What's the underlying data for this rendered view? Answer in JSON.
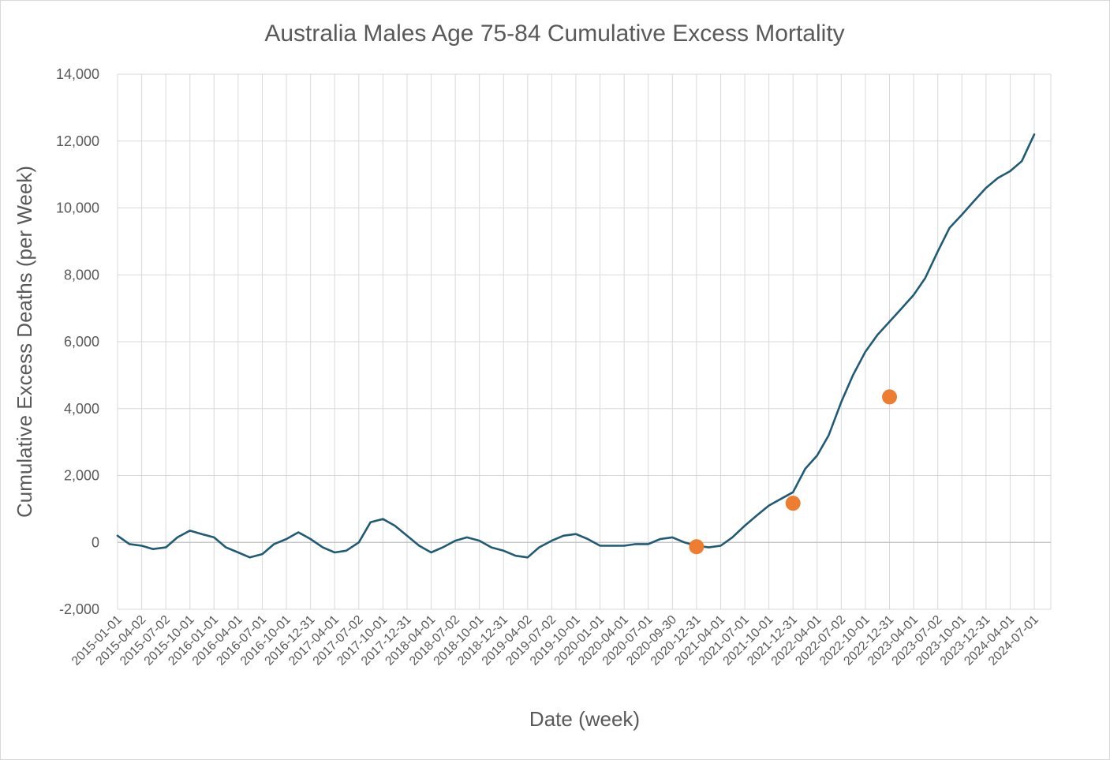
{
  "chart_data": {
    "type": "line",
    "title": "Australia Males Age 75-84 Cumulative Excess Mortality",
    "xlabel": "Date (week)",
    "ylabel": "Cumulative Excess Deaths (per Week)",
    "ylim": [
      -2000,
      14000
    ],
    "yticks": [
      -2000,
      0,
      2000,
      4000,
      6000,
      8000,
      10000,
      12000,
      14000
    ],
    "ytick_labels": [
      "-2,000",
      "0",
      "2,000",
      "4,000",
      "6,000",
      "8,000",
      "10,000",
      "12,000",
      "14,000"
    ],
    "grid": true,
    "x_tick_labels": [
      "2015-01-01",
      "2015-04-02",
      "2015-07-02",
      "2015-10-01",
      "2016-01-01",
      "2016-04-01",
      "2016-07-01",
      "2016-10-01",
      "2016-12-31",
      "2017-04-01",
      "2017-07-02",
      "2017-10-01",
      "2017-12-31",
      "2018-04-01",
      "2018-07-02",
      "2018-10-01",
      "2018-12-31",
      "2019-04-02",
      "2019-07-02",
      "2019-10-01",
      "2020-01-01",
      "2020-04-01",
      "2020-07-01",
      "2020-09-30",
      "2020-12-31",
      "2021-04-01",
      "2021-07-01",
      "2021-10-01",
      "2021-12-31",
      "2022-04-01",
      "2022-07-02",
      "2022-10-01",
      "2022-12-31",
      "2023-04-01",
      "2023-07-02",
      "2023-10-01",
      "2023-12-31",
      "2024-04-01",
      "2024-07-01"
    ],
    "series": [
      {
        "color": "#1f5b74",
        "x": [
          "2015-01-01",
          "2015-02-15",
          "2015-04-02",
          "2015-05-15",
          "2015-07-02",
          "2015-08-15",
          "2015-10-01",
          "2015-11-15",
          "2016-01-01",
          "2016-02-15",
          "2016-04-01",
          "2016-05-15",
          "2016-07-01",
          "2016-08-15",
          "2016-10-01",
          "2016-11-15",
          "2016-12-31",
          "2017-02-15",
          "2017-04-01",
          "2017-05-15",
          "2017-07-02",
          "2017-08-15",
          "2017-10-01",
          "2017-11-15",
          "2017-12-31",
          "2018-02-15",
          "2018-04-01",
          "2018-05-15",
          "2018-07-02",
          "2018-08-15",
          "2018-10-01",
          "2018-11-15",
          "2018-12-31",
          "2019-02-15",
          "2019-04-02",
          "2019-05-15",
          "2019-07-02",
          "2019-08-15",
          "2019-10-01",
          "2019-11-15",
          "2020-01-01",
          "2020-02-15",
          "2020-04-01",
          "2020-05-15",
          "2020-07-01",
          "2020-08-15",
          "2020-09-30",
          "2020-11-15",
          "2020-12-31",
          "2021-02-15",
          "2021-04-01",
          "2021-05-15",
          "2021-07-01",
          "2021-08-15",
          "2021-10-01",
          "2021-11-15",
          "2021-12-31",
          "2022-02-15",
          "2022-04-01",
          "2022-05-15",
          "2022-07-02",
          "2022-08-15",
          "2022-10-01",
          "2022-11-15",
          "2022-12-31",
          "2023-02-15",
          "2023-04-01",
          "2023-05-15",
          "2023-07-02",
          "2023-08-15",
          "2023-10-01",
          "2023-11-15",
          "2023-12-31",
          "2024-02-15",
          "2024-04-01",
          "2024-05-15",
          "2024-07-01"
        ],
        "values": [
          200,
          -50,
          -100,
          -200,
          -150,
          150,
          350,
          250,
          150,
          -150,
          -300,
          -450,
          -350,
          -50,
          100,
          300,
          100,
          -150,
          -300,
          -250,
          0,
          600,
          700,
          500,
          200,
          -100,
          -300,
          -150,
          50,
          150,
          50,
          -150,
          -250,
          -400,
          -450,
          -150,
          50,
          200,
          250,
          100,
          -100,
          -100,
          -100,
          -50,
          -50,
          100,
          150,
          0,
          -100,
          -150,
          -100,
          150,
          500,
          800,
          1100,
          1300,
          1500,
          2200,
          2600,
          3200,
          4200,
          5000,
          5700,
          6200,
          6600,
          7000,
          7400,
          7900,
          8700,
          9400,
          9800,
          10200,
          10600,
          10900,
          11100,
          11400,
          12200
        ]
      },
      {
        "color": "#ed7d31",
        "x": [
          "2020-12-31",
          "2021-12-31",
          "2022-12-31"
        ],
        "values": [
          -130,
          1170,
          4350
        ]
      }
    ]
  }
}
